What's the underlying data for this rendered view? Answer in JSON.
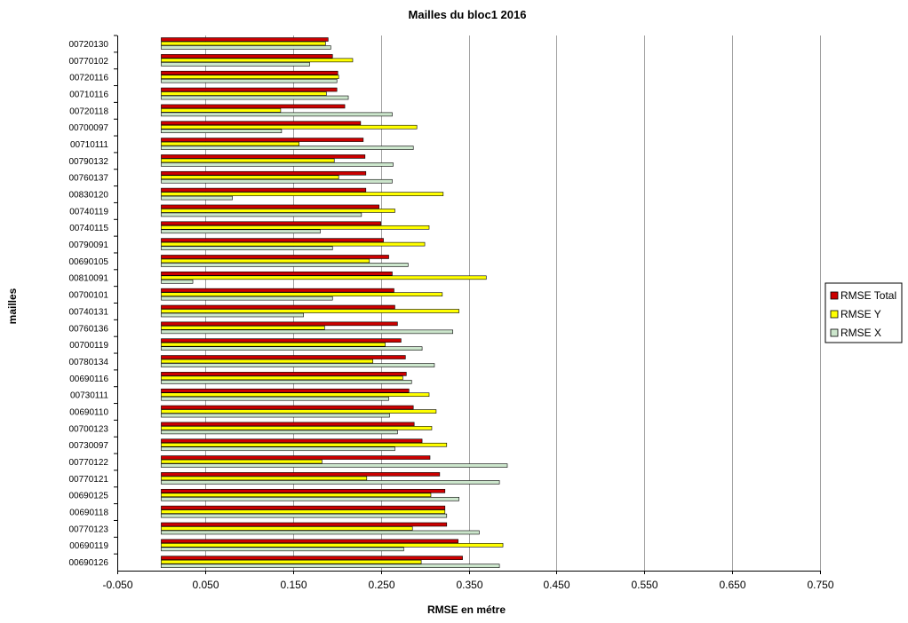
{
  "chart_data": {
    "type": "bar",
    "orientation": "horizontal",
    "title": "Mailles du bloc1 2016",
    "xlabel": "RMSE en métre",
    "ylabel": "mailles",
    "xlim": [
      -0.05,
      0.75
    ],
    "xticks": [
      -0.05,
      0.05,
      0.15,
      0.25,
      0.35,
      0.45,
      0.55,
      0.65,
      0.75
    ],
    "xtick_labels": [
      "-0.050",
      "0.050",
      "0.150",
      "0.250",
      "0.350",
      "0.450",
      "0.550",
      "0.650",
      "0.750"
    ],
    "grid": "vertical",
    "legend_position": "right",
    "categories": [
      "00720130",
      "00770102",
      "00720116",
      "00710116",
      "00720118",
      "00700097",
      "00710111",
      "00790132",
      "00760137",
      "00830120",
      "00740119",
      "00740115",
      "00790091",
      "00690105",
      "00810091",
      "00700101",
      "00740131",
      "00760136",
      "00700119",
      "00780134",
      "00690116",
      "00730111",
      "00690110",
      "00700123",
      "00730097",
      "00770122",
      "00770121",
      "00690125",
      "00690118",
      "00770123",
      "00690119",
      "00690126"
    ],
    "series": [
      {
        "name": "RMSE Total",
        "color": "#cc0000",
        "values": [
          0.19,
          0.195,
          0.201,
          0.2,
          0.209,
          0.227,
          0.23,
          0.232,
          0.233,
          0.233,
          0.248,
          0.25,
          0.253,
          0.259,
          0.263,
          0.265,
          0.266,
          0.269,
          0.273,
          0.278,
          0.279,
          0.282,
          0.287,
          0.288,
          0.297,
          0.306,
          0.317,
          0.323,
          0.323,
          0.325,
          0.338,
          0.343
        ]
      },
      {
        "name": "RMSE Y",
        "color": "#ffff00",
        "values": [
          0.187,
          0.218,
          0.202,
          0.188,
          0.136,
          0.291,
          0.157,
          0.197,
          0.202,
          0.321,
          0.266,
          0.305,
          0.3,
          0.237,
          0.37,
          0.32,
          0.339,
          0.186,
          0.255,
          0.241,
          0.275,
          0.305,
          0.313,
          0.308,
          0.325,
          0.183,
          0.234,
          0.307,
          0.323,
          0.286,
          0.389,
          0.296
        ]
      },
      {
        "name": "RMSE X",
        "color": "#cce6cc",
        "values": [
          0.193,
          0.169,
          0.2,
          0.213,
          0.263,
          0.137,
          0.287,
          0.264,
          0.263,
          0.081,
          0.228,
          0.181,
          0.195,
          0.281,
          0.036,
          0.195,
          0.162,
          0.332,
          0.297,
          0.311,
          0.285,
          0.259,
          0.26,
          0.269,
          0.266,
          0.394,
          0.385,
          0.339,
          0.325,
          0.362,
          0.276,
          0.385
        ]
      }
    ]
  }
}
